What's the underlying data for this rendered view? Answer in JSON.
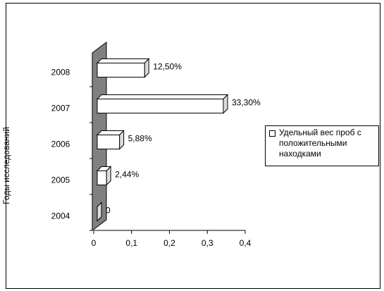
{
  "chart_data": {
    "type": "bar",
    "orientation": "horizontal",
    "y_label": "Годы исследований",
    "categories": [
      "2004",
      "2005",
      "2006",
      "2007",
      "2008"
    ],
    "series": [
      {
        "name": "Удельный вес  проб с положительными находками",
        "color": "#ffffff",
        "values": [
          0,
          0.0244,
          0.0588,
          0.333,
          0.125
        ],
        "value_labels": [
          "0",
          "2,44%",
          "5,88%",
          "33,30%",
          "12,50%"
        ]
      }
    ],
    "xlim": [
      0,
      0.4
    ],
    "xticks": [
      0,
      {
        "value": 0.1,
        "label": "0,1"
      },
      {
        "value": 0.2,
        "label": "0,2"
      },
      {
        "value": 0.3,
        "label": "0,3"
      },
      {
        "value": 0.4,
        "label": "0,4"
      }
    ],
    "legend": "right"
  }
}
